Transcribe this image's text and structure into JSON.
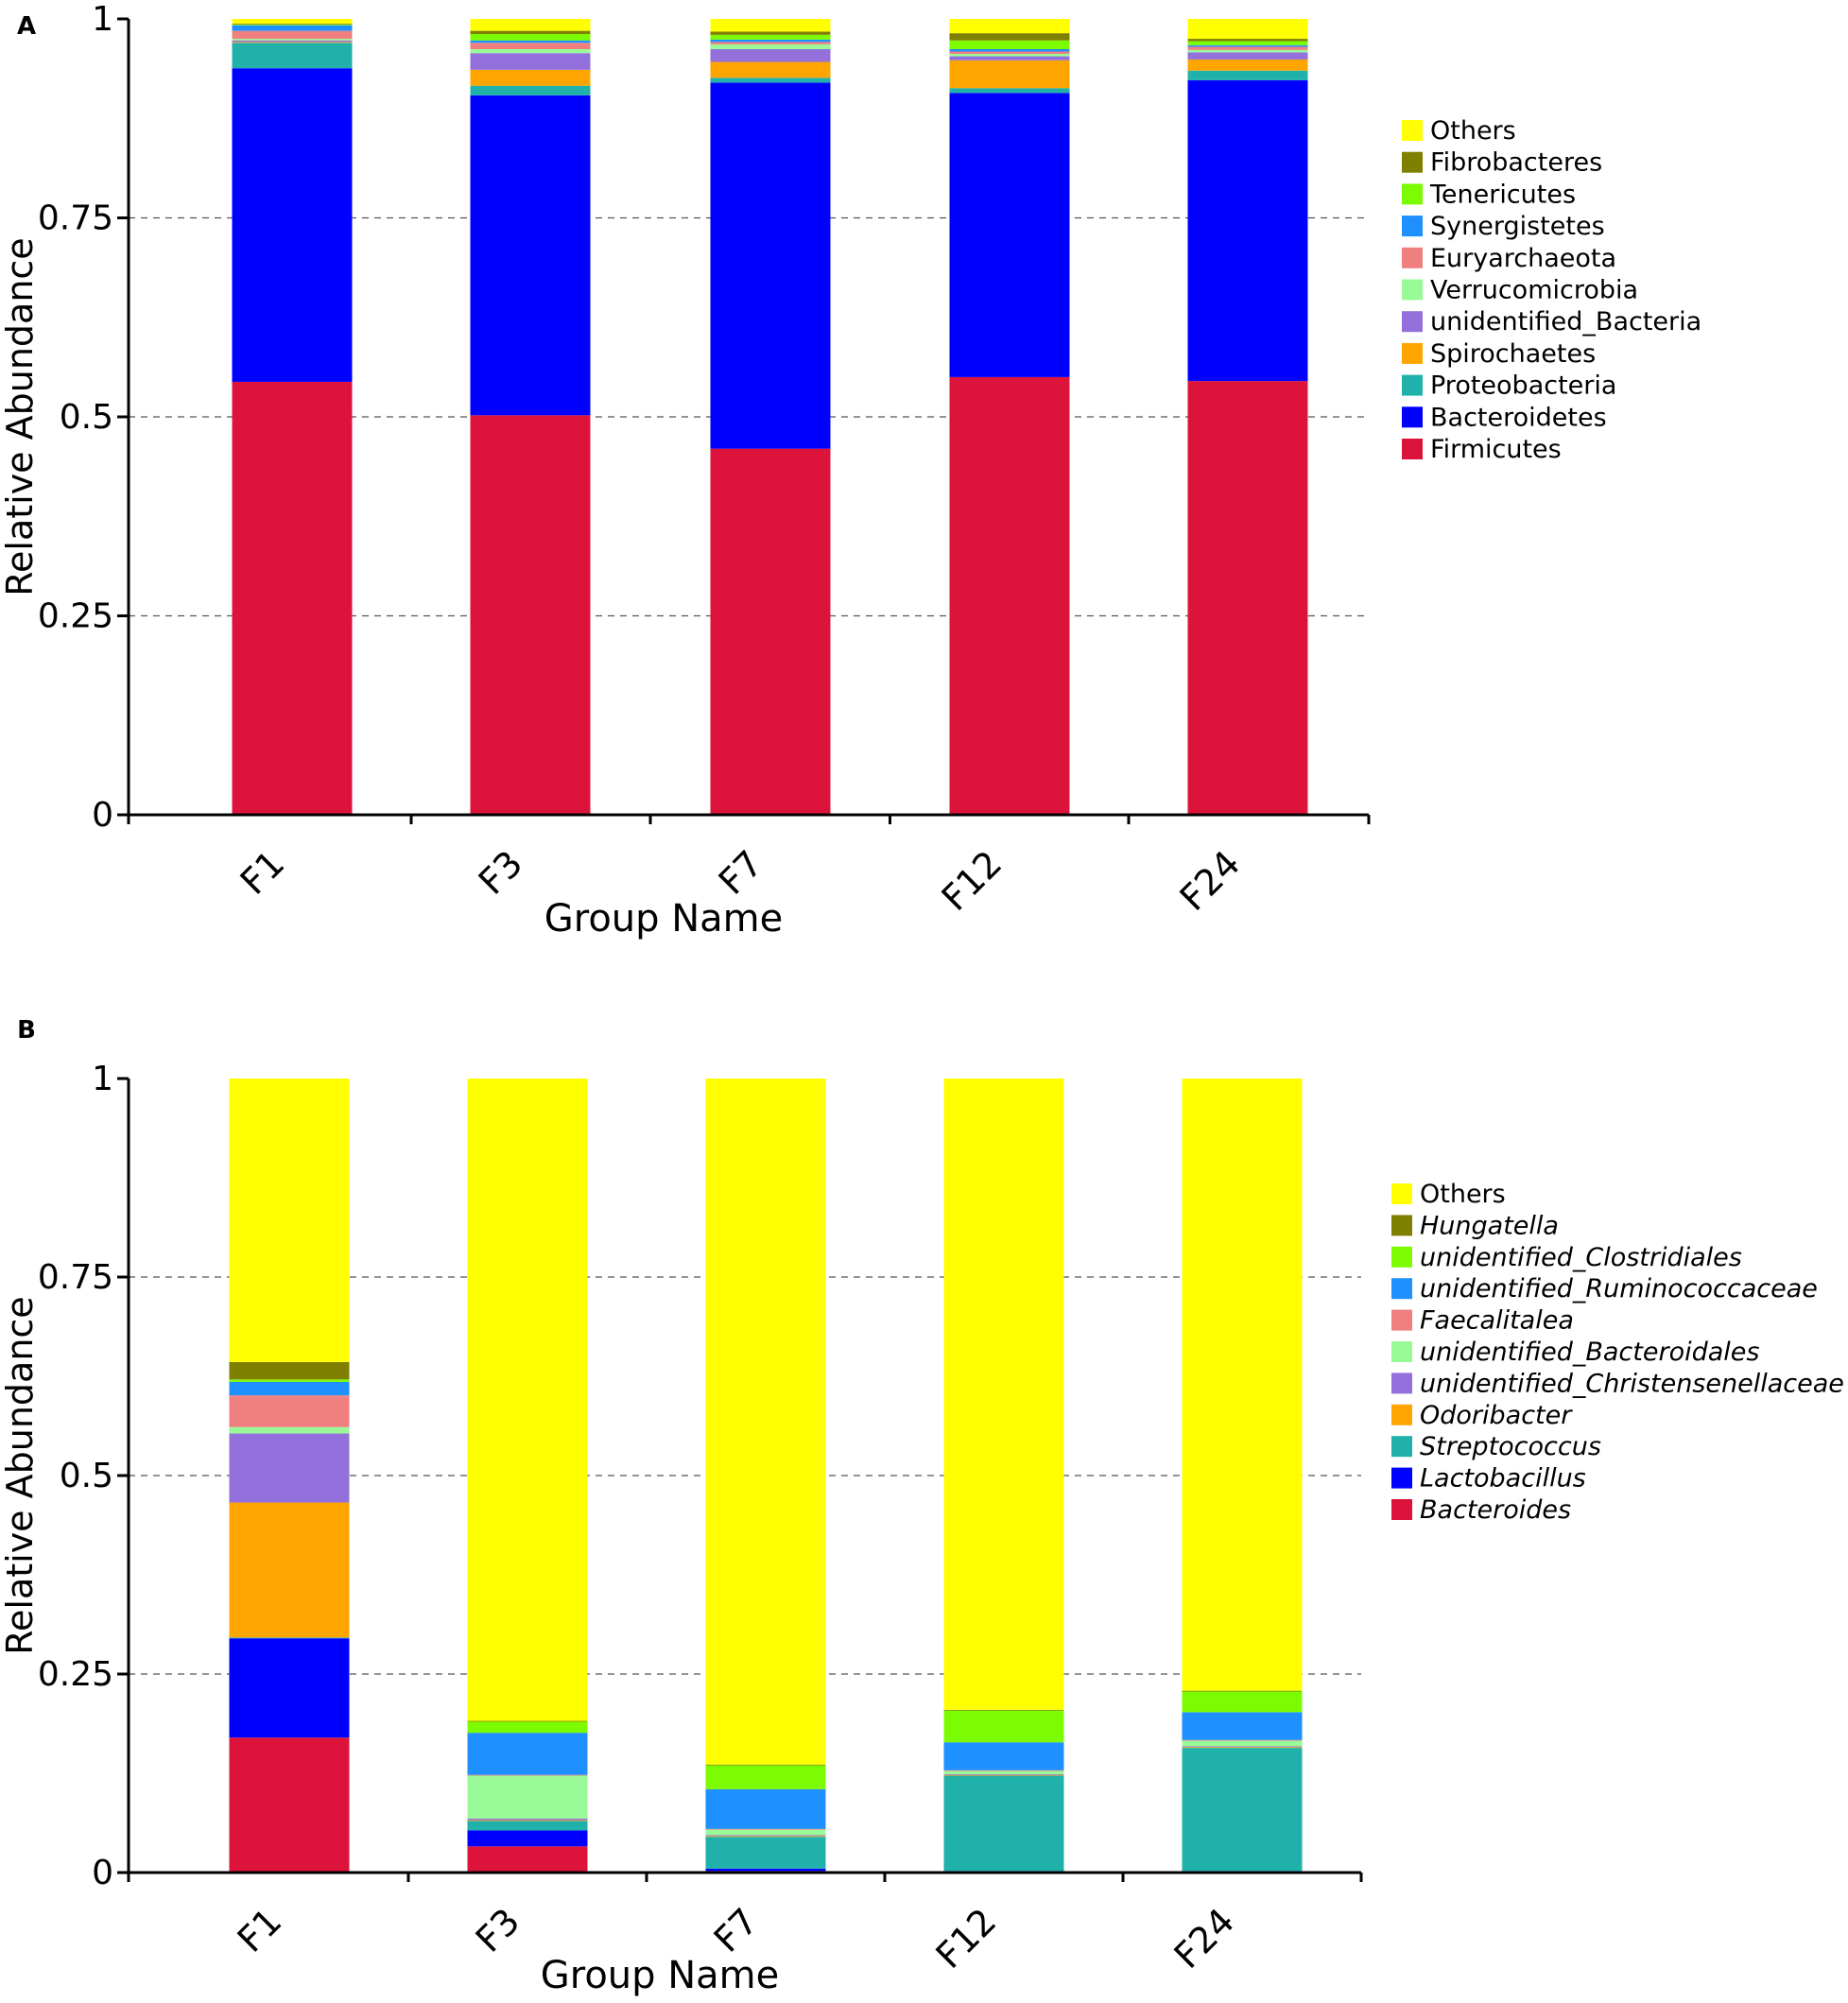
{
  "colors": {
    "yellow": "#ffff00",
    "olive": "#7f7f00",
    "lime": "#7cfc00",
    "blue_light": "#1e90ff",
    "salmon": "#f08080",
    "pale_green": "#98fb98",
    "purple": "#9370db",
    "orange": "#ffa500",
    "teal": "#20b2aa",
    "blue": "#0000ff",
    "crimson": "#dc143c"
  },
  "chart_data": [
    {
      "panel_label": "A",
      "type": "bar",
      "stacked": true,
      "title": "",
      "xlabel": "Group Name",
      "ylabel": "Relative Abundance",
      "ylim": [
        0,
        1
      ],
      "yticks": [
        0,
        0.25,
        0.5,
        0.75,
        1
      ],
      "ytick_labels": [
        "0",
        "0.25",
        "0.5",
        "0.75",
        "1"
      ],
      "grid": "dashed horizontal",
      "legend_position": "right",
      "legend_italic": false,
      "categories": [
        "F1",
        "F3",
        "F7",
        "F12",
        "F24"
      ],
      "series": [
        {
          "name": "Firmicutes",
          "color": "#dc143c",
          "values": [
            0.544,
            0.502,
            0.46,
            0.55,
            0.545
          ]
        },
        {
          "name": "Bacteroidetes",
          "color": "#0000ff",
          "values": [
            0.394,
            0.402,
            0.46,
            0.357,
            0.378
          ]
        },
        {
          "name": "Proteobacteria",
          "color": "#20b2aa",
          "values": [
            0.032,
            0.012,
            0.006,
            0.006,
            0.012
          ]
        },
        {
          "name": "Spirochaetes",
          "color": "#ffa500",
          "values": [
            0.001,
            0.02,
            0.02,
            0.035,
            0.014
          ]
        },
        {
          "name": "unidentified_Bacteria",
          "color": "#9370db",
          "values": [
            0.002,
            0.021,
            0.016,
            0.005,
            0.009
          ]
        },
        {
          "name": "Verrucomicrobia",
          "color": "#98fb98",
          "values": [
            0.002,
            0.005,
            0.006,
            0.003,
            0.003
          ]
        },
        {
          "name": "Euryarchaeota",
          "color": "#f08080",
          "values": [
            0.01,
            0.008,
            0.003,
            0.003,
            0.004
          ]
        },
        {
          "name": "Synergistetes",
          "color": "#1e90ff",
          "values": [
            0.007,
            0.003,
            0.003,
            0.003,
            0.002
          ]
        },
        {
          "name": "Tenericutes",
          "color": "#7cfc00",
          "values": [
            0.001,
            0.008,
            0.006,
            0.011,
            0.005
          ]
        },
        {
          "name": "Fibrobacteres",
          "color": "#7f7f00",
          "values": [
            0.001,
            0.004,
            0.004,
            0.009,
            0.003
          ]
        },
        {
          "name": "Others",
          "color": "#ffff00",
          "values": [
            0.006,
            0.015,
            0.016,
            0.018,
            0.025
          ]
        }
      ]
    },
    {
      "panel_label": "B",
      "type": "bar",
      "stacked": true,
      "title": "",
      "xlabel": "Group Name",
      "ylabel": "Relative Abundance",
      "ylim": [
        0,
        1
      ],
      "yticks": [
        0,
        0.25,
        0.5,
        0.75,
        1
      ],
      "ytick_labels": [
        "0",
        "0.25",
        "0.5",
        "0.75",
        "1"
      ],
      "grid": "dashed horizontal",
      "legend_position": "right",
      "legend_italic": true,
      "categories": [
        "F1",
        "F3",
        "F7",
        "F12",
        "F24"
      ],
      "series": [
        {
          "name": "Bacteroides",
          "color": "#dc143c",
          "values": [
            0.17,
            0.033,
            0.002,
            0.001,
            0.001
          ]
        },
        {
          "name": "Lactobacillus",
          "color": "#0000ff",
          "values": [
            0.125,
            0.02,
            0.003,
            0.001,
            0.001
          ]
        },
        {
          "name": "Streptococcus",
          "color": "#20b2aa",
          "values": [
            0.001,
            0.012,
            0.04,
            0.12,
            0.155
          ]
        },
        {
          "name": "Odoribacter",
          "color": "#ffa500",
          "values": [
            0.17,
            0.001,
            0.001,
            0.001,
            0.001
          ]
        },
        {
          "name": "unidentified_Christensenellaceae",
          "color": "#9370db",
          "values": [
            0.087,
            0.002,
            0.001,
            0.001,
            0.001
          ]
        },
        {
          "name": "unidentified_Bacteroidales",
          "color": "#98fb98",
          "values": [
            0.008,
            0.054,
            0.007,
            0.004,
            0.007
          ]
        },
        {
          "name": "Faecalitalea",
          "color": "#f08080",
          "values": [
            0.04,
            0.001,
            0.001,
            0.001,
            0.001
          ]
        },
        {
          "name": "unidentified_Ruminococcaceae",
          "color": "#1e90ff",
          "values": [
            0.017,
            0.053,
            0.05,
            0.035,
            0.035
          ]
        },
        {
          "name": "unidentified_Clostridiales",
          "color": "#7cfc00",
          "values": [
            0.003,
            0.014,
            0.03,
            0.04,
            0.026
          ]
        },
        {
          "name": "Hungatella",
          "color": "#7f7f00",
          "values": [
            0.022,
            0.001,
            0.001,
            0.001,
            0.001
          ]
        },
        {
          "name": "Others",
          "color": "#ffff00",
          "values": [
            0.357,
            0.809,
            0.864,
            0.795,
            0.771
          ]
        }
      ]
    }
  ]
}
